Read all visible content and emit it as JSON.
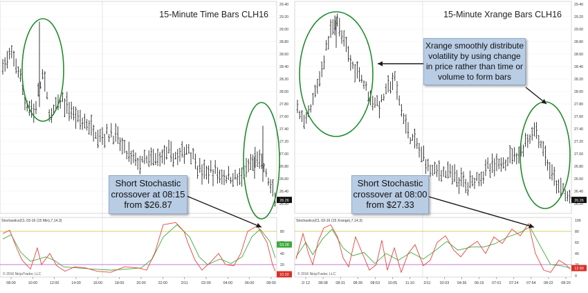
{
  "chart_data": [
    {
      "type": "bar",
      "title": "15-Minute Time Bars CLH16",
      "instrument": "CLH16",
      "bar_type": "15-Minute Time Bars",
      "price_axis": {
        "min": 26.2,
        "max": 29.4,
        "step": 0.2,
        "ticks": [
          "26.20",
          "26.40",
          "26.60",
          "26.80",
          "27.00",
          "27.20",
          "27.40",
          "27.60",
          "27.80",
          "28.00",
          "28.20",
          "28.40",
          "28.60",
          "28.80",
          "29.00",
          "29.20",
          "29.40"
        ]
      },
      "last_price_label": "26.26",
      "time_axis": {
        "ticks": [
          "08:00",
          "10:00",
          "12:00",
          "14:00",
          "16:00",
          "18:00",
          "20:00",
          "22:00",
          "2/11",
          "02:00",
          "04:00",
          "06:00",
          "08:00"
        ]
      },
      "annotations": [
        "Short Stochastic crossover at 08:15 from $26.87"
      ],
      "highlighted_regions": 2,
      "indicator": {
        "label": "Stochastics(CL 03-16 (15 Min),7,14,3)",
        "yrange": [
          0,
          100
        ],
        "ticks": [
          "0",
          "20",
          "40",
          "60",
          "80"
        ],
        "levels": [
          20,
          80
        ],
        "series": [
          {
            "name": "K",
            "color": "#e8413c"
          },
          {
            "name": "D",
            "color": "#3caa3c"
          }
        ],
        "value_labels": [
          "53.08",
          "10.02"
        ]
      },
      "copyright": "© 2016 NinjaTrader, LLC",
      "grid": true
    },
    {
      "type": "bar",
      "title": "15-Minute Xrange Bars CLH16",
      "instrument": "CLH16",
      "bar_type": "15-Minute Xrange Bars",
      "price_axis": {
        "min": 26.2,
        "max": 29.4,
        "step": 0.2,
        "ticks": [
          "26.20",
          "26.40",
          "26.60",
          "26.80",
          "27.00",
          "27.20",
          "27.40",
          "27.60",
          "27.80",
          "28.00",
          "28.20",
          "28.40",
          "28.60",
          "28.80",
          "29.00",
          "29.20",
          "29.40"
        ]
      },
      "last_price_label": "26.26",
      "time_axis": {
        "ticks": [
          "2/ 12",
          "08:08",
          "08:31",
          "08:39",
          "08:53",
          "10:05",
          "11:10",
          "2/11",
          "02:03",
          "04:36",
          "06:19",
          "07:01",
          "07:24",
          "07:54",
          "08:22",
          "08:20"
        ]
      },
      "annotations": [
        "Xrange smoothly distribute volatility by using change in price rather than time or volume to form bars",
        "Short Stochastic crossover at 08:00 from $27.33"
      ],
      "highlighted_regions": 2,
      "indicator": {
        "label": "Stochastics(CL 03-16 (15 Xrange),7,14,3)",
        "yrange": [
          0,
          100
        ],
        "ticks": [
          "0",
          "20",
          "40",
          "60",
          "80",
          "100"
        ],
        "levels": [
          20,
          80
        ],
        "series": [
          {
            "name": "K",
            "color": "#e8413c"
          },
          {
            "name": "D",
            "color": "#3caa3c"
          }
        ],
        "value_labels": [
          "12.90"
        ]
      },
      "copyright": "© 2016 NinjaTrader, LLC",
      "grid": true
    }
  ],
  "callouts": {
    "left_stoch": "Short Stochastic crossover at 08:15 from $26.87",
    "right_xrange": "Xrange smoothly distribute volatility by using change in price rather than time or volume to form bars",
    "right_stoch": "Short Stochastic crossover at 08:00 from $27.33"
  }
}
